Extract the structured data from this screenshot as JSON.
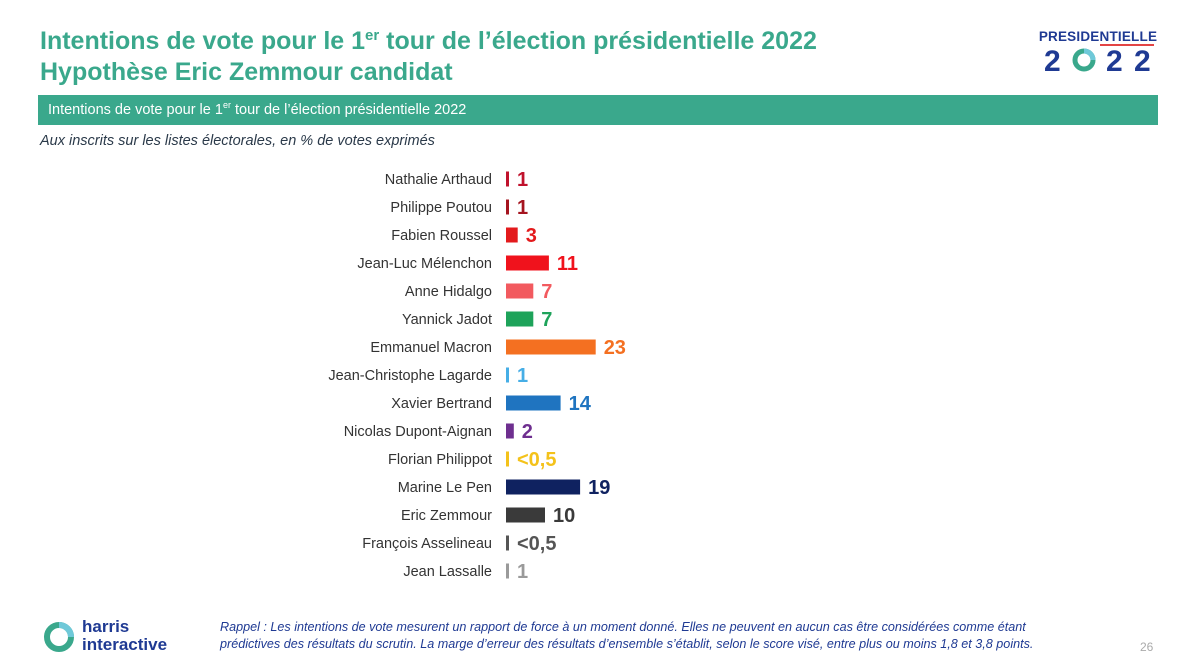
{
  "header": {
    "title_line1_pre": "Intentions de vote pour le 1",
    "title_line1_sup": "er",
    "title_line1_post": " tour de l’élection présidentielle 2022",
    "title_line2": "Hypothèse Eric Zemmour candidat"
  },
  "logo": {
    "word": "PRESIDENTIELLE",
    "digit1": "2",
    "digit3": "2",
    "digit4": "2"
  },
  "banner": {
    "pre": "Intentions de vote pour le 1",
    "sup": "er",
    "post": " tour de l’élection présidentielle 2022"
  },
  "subtitle": "Aux inscrits sur les listes électorales, en % de votes exprimés",
  "chart_data": {
    "type": "bar",
    "orientation": "horizontal",
    "title": "Intentions de vote pour le 1er tour de l’élection présidentielle 2022",
    "xlabel": "",
    "ylabel": "",
    "unit": "%",
    "categories": [
      "Nathalie Arthaud",
      "Philippe Poutou",
      "Fabien Roussel",
      "Jean-Luc Mélenchon",
      "Anne Hidalgo",
      "Yannick Jadot",
      "Emmanuel Macron",
      "Jean-Christophe Lagarde",
      "Xavier Bertrand",
      "Nicolas Dupont-Aignan",
      "Florian Philippot",
      "Marine Le Pen",
      "Eric Zemmour",
      "François Asselineau",
      "Jean Lassalle"
    ],
    "values": [
      1,
      1,
      3,
      11,
      7,
      7,
      23,
      1,
      14,
      2,
      0.5,
      19,
      10,
      0.5,
      1
    ],
    "value_labels": [
      "1",
      "1",
      "3",
      "11",
      "7",
      "7",
      "23",
      "1",
      "14",
      "2",
      "<0,5",
      "19",
      "10",
      "<0,5",
      "1"
    ],
    "colors": [
      "#c0122c",
      "#a5141f",
      "#e31a1c",
      "#f0121c",
      "#f25a5f",
      "#1ea35a",
      "#f47021",
      "#46aee6",
      "#1f74c0",
      "#6e2f8f",
      "#f4c21a",
      "#0f2260",
      "#3a3a3a",
      "#555555",
      "#9a9a9a"
    ],
    "xlim": [
      0,
      23
    ]
  },
  "footer": {
    "brand_line1": "harris",
    "brand_line2": "interactive",
    "note_line1": "Rappel : Les intentions de vote mesurent un rapport de force à un moment donné. Elles ne peuvent en aucun cas être considérées comme étant",
    "note_line2": "prédictives des résultats du scrutin. La marge d’erreur des résultats d’ensemble s’établit, selon le score visé, entre plus ou moins 1,8 et 3,8 points.",
    "page_number": "26"
  },
  "colors": {
    "accent": "#3aa88c",
    "navy": "#1f3a93"
  }
}
